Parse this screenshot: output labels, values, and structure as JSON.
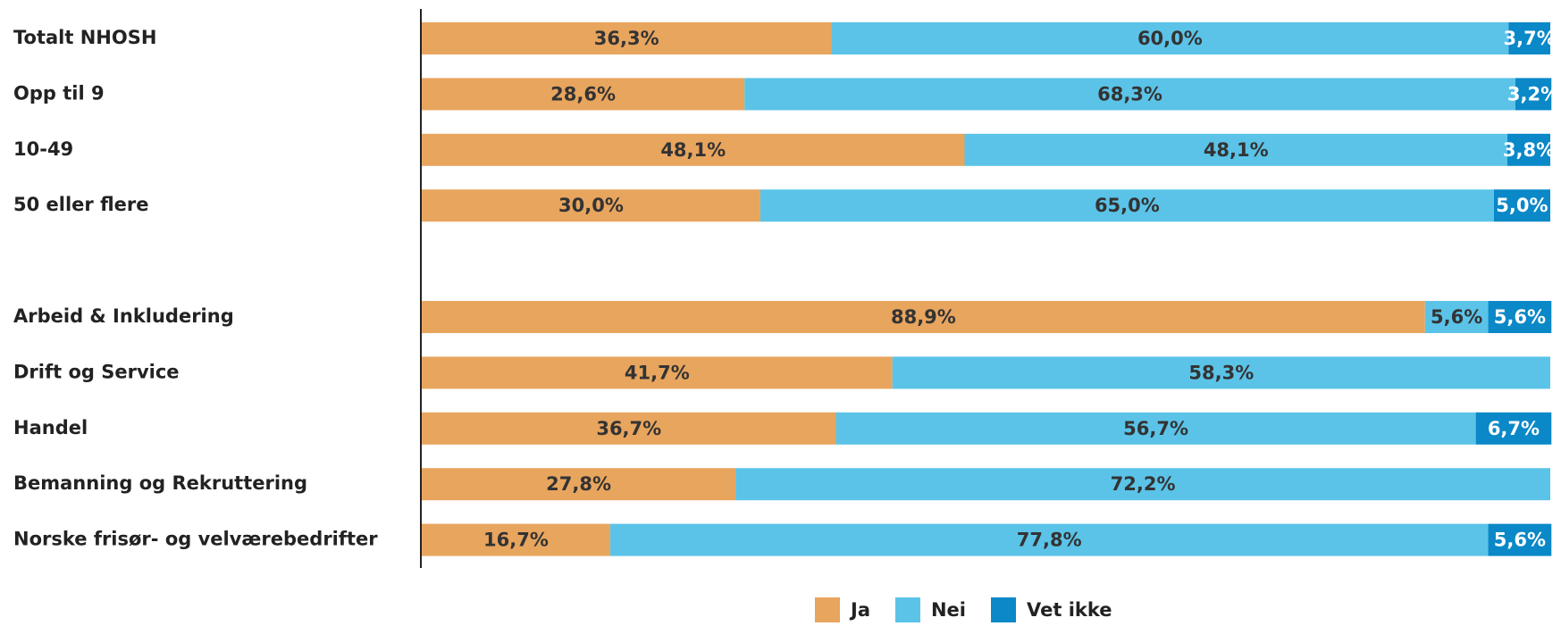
{
  "chart_data": {
    "type": "stacked-bar-horizontal",
    "categories": [
      "Totalt NHOSH",
      "Opp til 9",
      "10-49",
      "50 eller flere",
      null,
      "Arbeid & Inkludering",
      "Drift og Service",
      "Handel",
      "Bemanning og Rekruttering",
      "Norske frisør- og velværebedrifter"
    ],
    "xlim": [
      0,
      100
    ],
    "legend": "bottom",
    "series": [
      {
        "name": "Ja",
        "color": "#e8a55e",
        "label_color": "#333333",
        "values": [
          36.3,
          28.6,
          48.1,
          30.0,
          null,
          88.9,
          41.7,
          36.7,
          27.8,
          16.7
        ],
        "value_labels": [
          "36,3%",
          "28,6%",
          "48,1%",
          "30,0%",
          null,
          "88,9%",
          "41,7%",
          "36,7%",
          "27,8%",
          "16,7%"
        ]
      },
      {
        "name": "Nei",
        "color": "#5bc3e8",
        "label_color": "#333333",
        "values": [
          60.0,
          68.3,
          48.1,
          65.0,
          null,
          5.6,
          58.3,
          56.7,
          72.2,
          77.8
        ],
        "value_labels": [
          "60,0%",
          "68,3%",
          "48,1%",
          "65,0%",
          null,
          "5,6%",
          "58,3%",
          "56,7%",
          "72,2%",
          "77,8%"
        ]
      },
      {
        "name": "Vet ikke",
        "color": "#0a88c8",
        "label_color": "#ffffff",
        "values": [
          3.7,
          3.2,
          3.8,
          5.0,
          null,
          5.6,
          null,
          6.7,
          null,
          5.6
        ],
        "value_labels": [
          "3,7%",
          "3,2%",
          "3,8%",
          "5,0%",
          null,
          "5,6%",
          null,
          "6,7%",
          null,
          "5,6%"
        ]
      }
    ]
  }
}
